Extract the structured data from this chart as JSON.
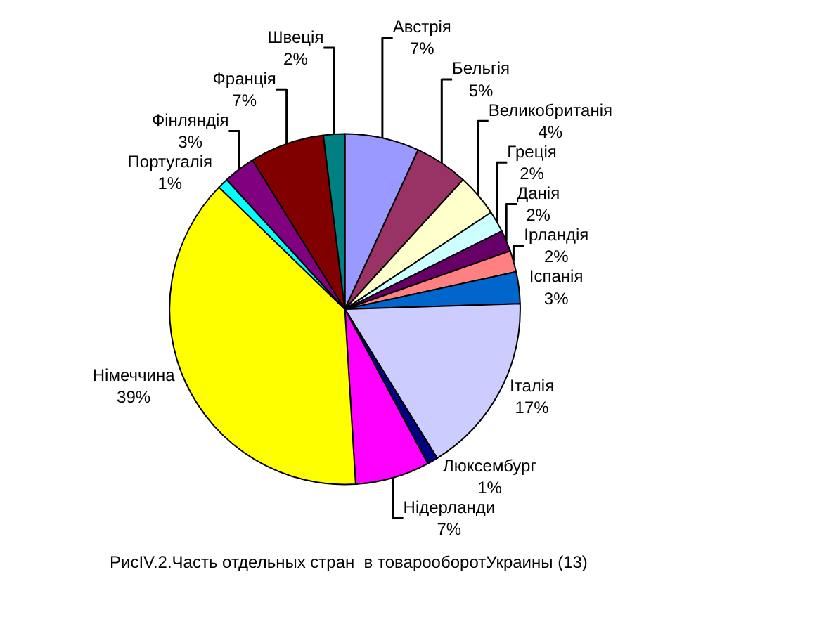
{
  "chart_data": {
    "type": "pie",
    "categories": [
      "Австрія",
      "Бельгія",
      "Великобританія",
      "Греція",
      "Данія",
      "Ірландія",
      "Іспанія",
      "Італія",
      "Люксембург",
      "Нідерланди",
      "Німеччина",
      "Португалія",
      "Фінляндія",
      "Франція",
      "Швеція"
    ],
    "values": [
      7,
      5,
      4,
      2,
      2,
      2,
      3,
      17,
      1,
      7,
      39,
      1,
      3,
      7,
      2
    ],
    "value_labels": [
      "7%",
      "5%",
      "4%",
      "2%",
      "2%",
      "2%",
      "3%",
      "17%",
      "1%",
      "7%",
      "39%",
      "1%",
      "3%",
      "7%",
      "2%"
    ],
    "colors": [
      "#9999ff",
      "#993366",
      "#ffffcc",
      "#ccffff",
      "#660066",
      "#ff8080",
      "#0066cc",
      "#ccccff",
      "#000080",
      "#ff00ff",
      "#ffff00",
      "#00ffff",
      "#800080",
      "#800000",
      "#008080"
    ],
    "annotations": [
      "РисIV.2.Часть отдельных стран  в товарооборотУкраины (13)"
    ]
  }
}
